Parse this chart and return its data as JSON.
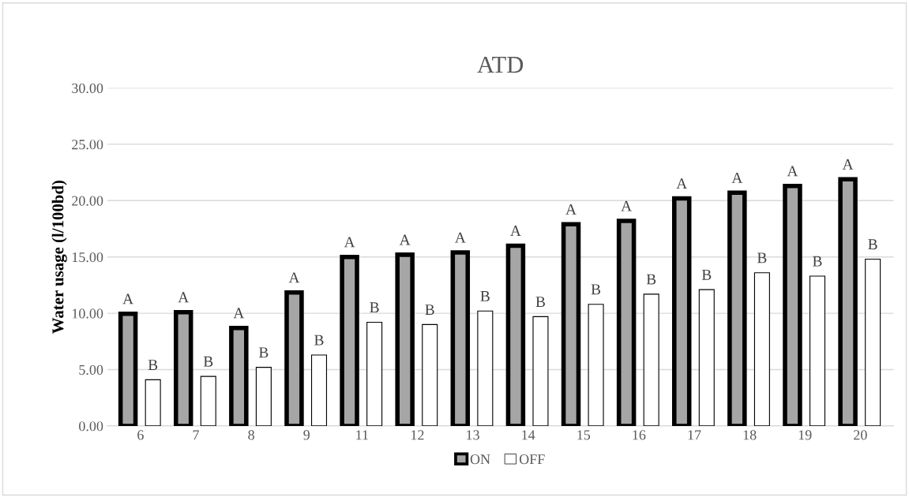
{
  "chart_data": {
    "type": "bar",
    "title": "ATD",
    "ylabel": "Water usage (l/100bd)",
    "categories": [
      "6",
      "7",
      "8",
      "9",
      "11",
      "12",
      "13",
      "14",
      "15",
      "16",
      "17",
      "18",
      "19",
      "20"
    ],
    "series": [
      {
        "name": "ON",
        "color": "#a6a6a6",
        "values": [
          9.95,
          10.1,
          8.7,
          11.85,
          15.0,
          15.2,
          15.4,
          16.0,
          17.9,
          18.2,
          20.2,
          20.7,
          21.3,
          21.9
        ],
        "value_labels": [
          "A",
          "A",
          "A",
          "A",
          "A",
          "A",
          "A",
          "A",
          "A",
          "A",
          "A",
          "A",
          "A",
          "A"
        ]
      },
      {
        "name": "OFF",
        "color": "#ffffff",
        "values": [
          4.1,
          4.4,
          5.2,
          6.3,
          9.2,
          9.0,
          10.2,
          9.7,
          10.8,
          11.7,
          12.1,
          13.6,
          13.3,
          14.8
        ],
        "value_labels": [
          "B",
          "B",
          "B",
          "B",
          "B",
          "B",
          "B",
          "B",
          "B",
          "B",
          "B",
          "B",
          "B",
          "B"
        ]
      }
    ],
    "ylim": [
      0,
      30
    ],
    "yticks": [
      {
        "value": 0,
        "label": "0.00"
      },
      {
        "value": 5,
        "label": "5.00"
      },
      {
        "value": 10,
        "label": "10.00"
      },
      {
        "value": 15,
        "label": "15.00"
      },
      {
        "value": 20,
        "label": "20.00"
      },
      {
        "value": 25,
        "label": "25.00"
      },
      {
        "value": 30,
        "label": "30.00"
      }
    ],
    "grid": "y",
    "legend": "bottom"
  }
}
